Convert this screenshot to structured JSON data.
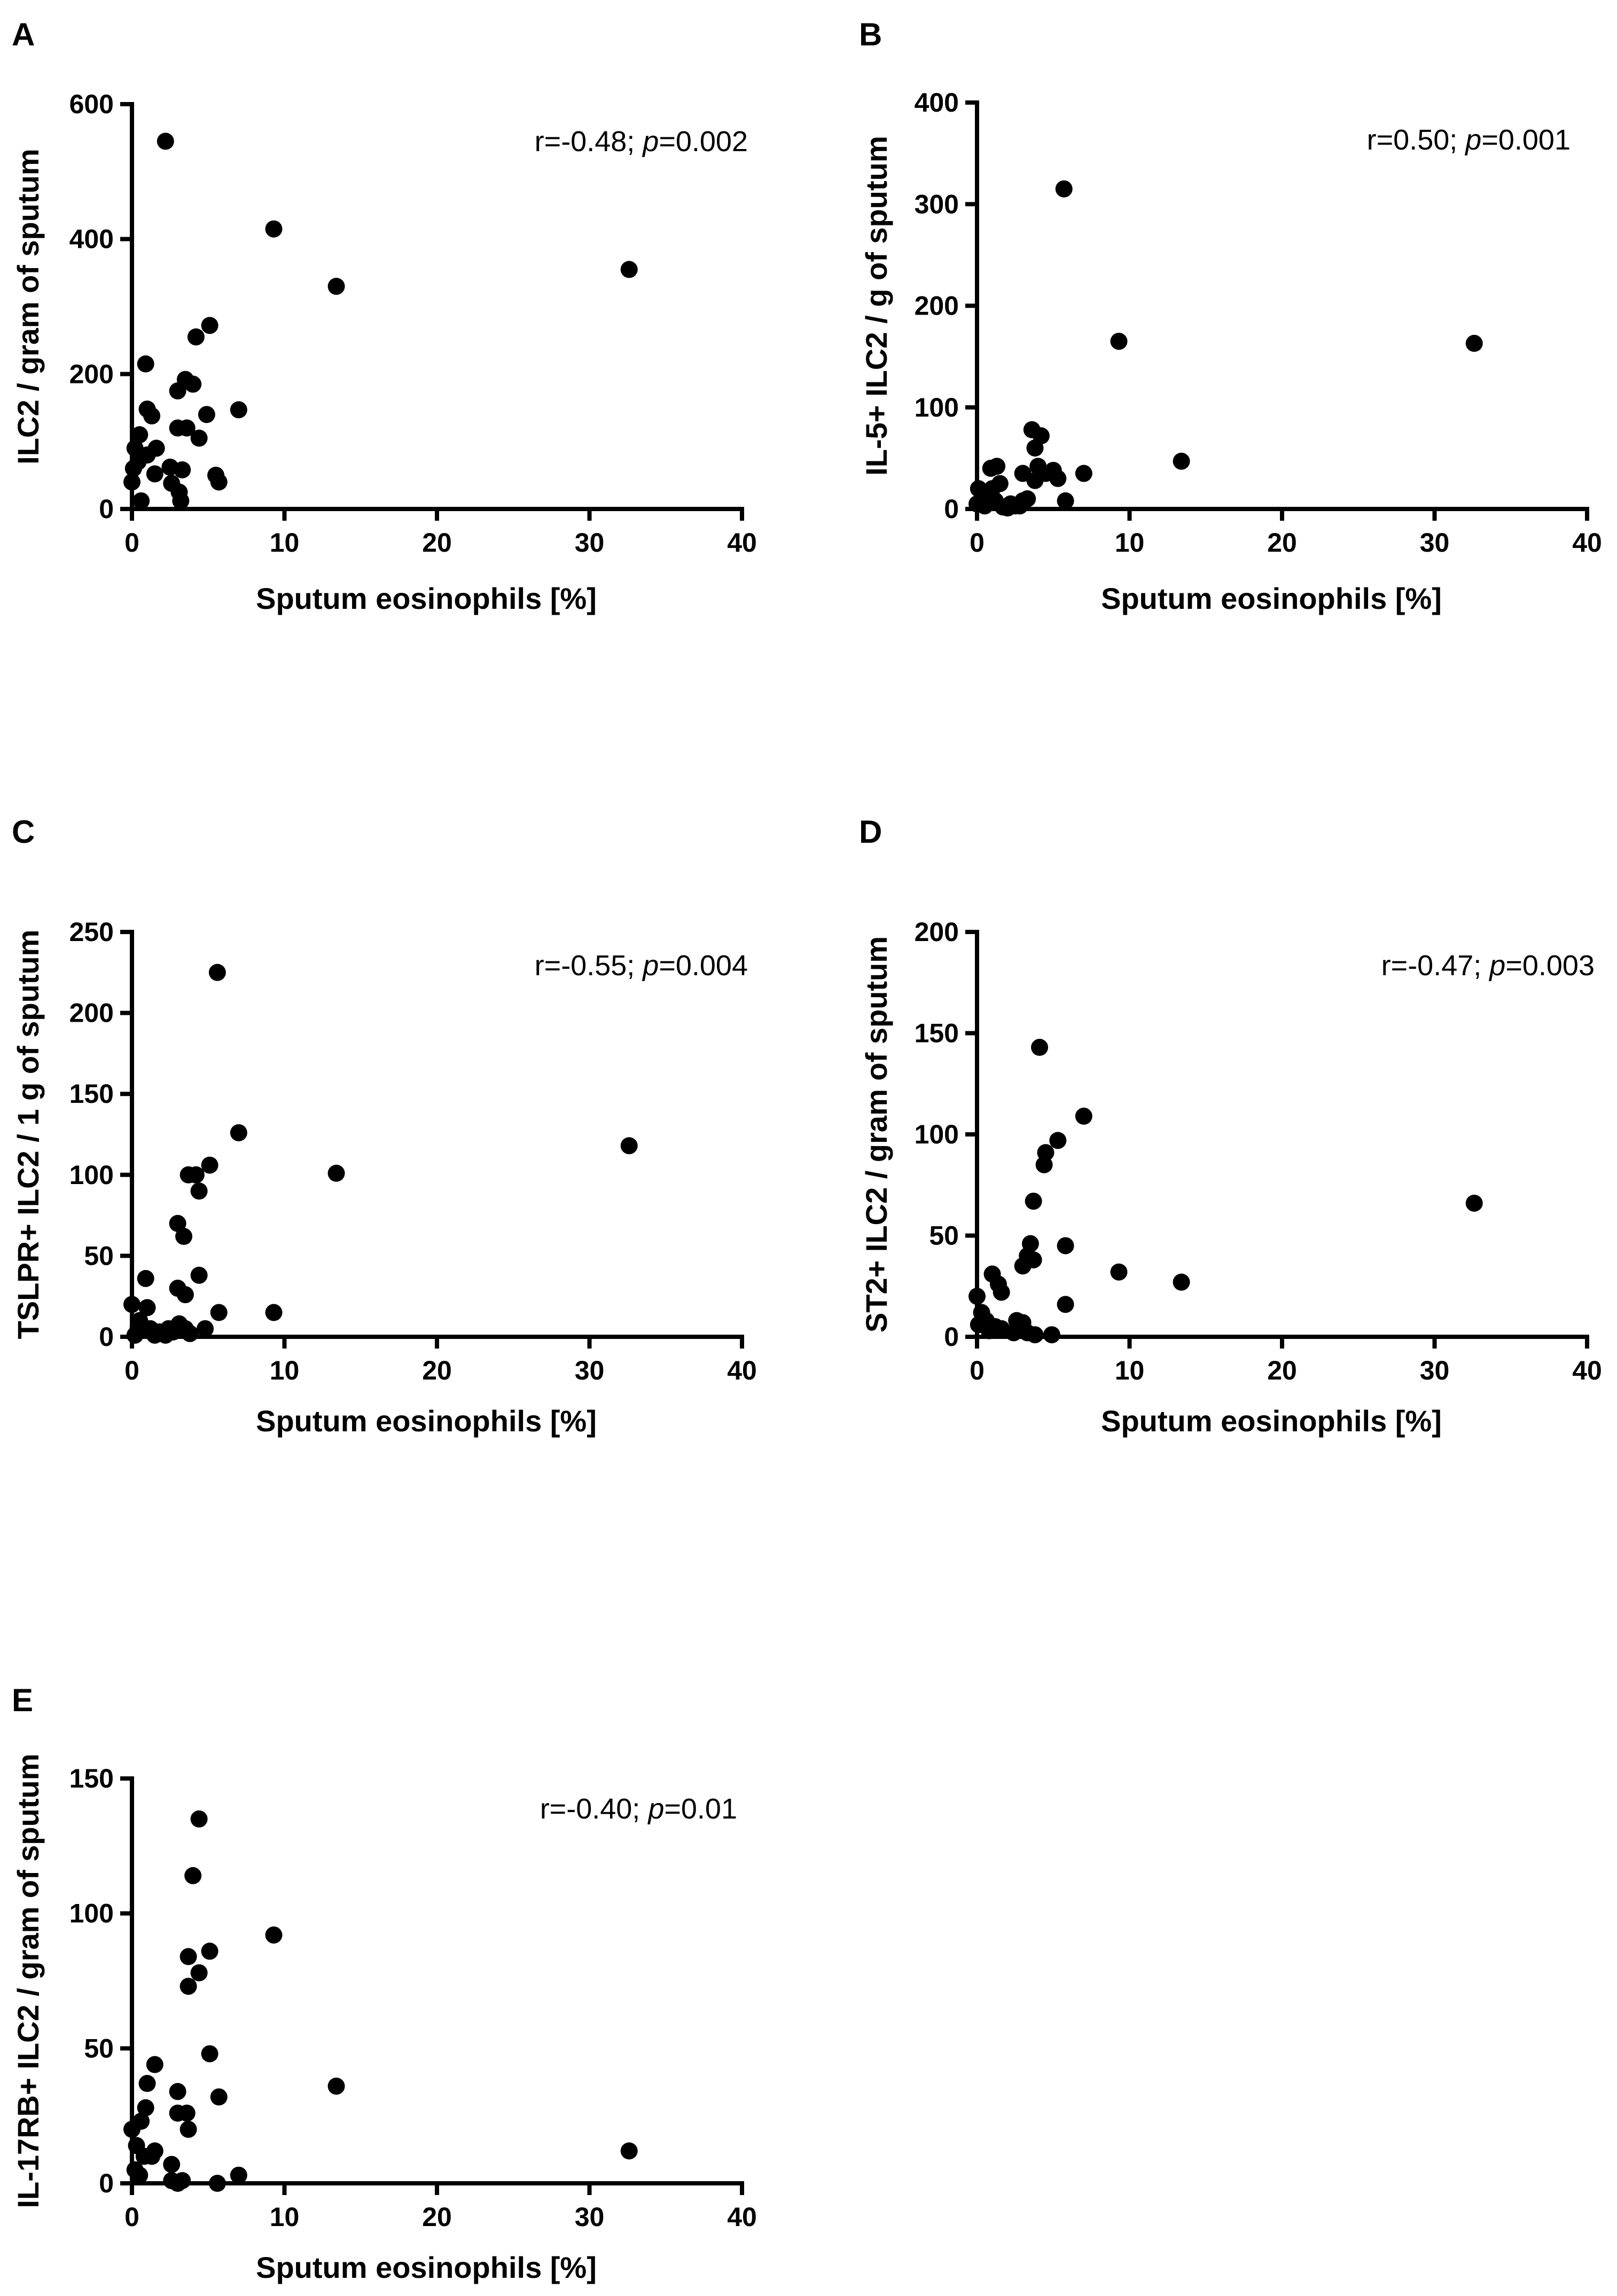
{
  "chart_data": [
    {
      "panel": "A",
      "type": "scatter",
      "xlabel": "Sputum eosinophils [%]",
      "ylabel": "ILC2 / gram of sputum",
      "xticks": [
        0,
        10,
        20,
        30,
        40
      ],
      "yticks": [
        0,
        200,
        400,
        600
      ],
      "xlim": [
        0,
        40
      ],
      "ylim": [
        0,
        600
      ],
      "annotation": {
        "r": "r=-0.48; ",
        "p_label": "p",
        "p_value": "=0.002"
      },
      "points": [
        [
          2.2,
          545
        ],
        [
          9.3,
          415
        ],
        [
          13.4,
          330
        ],
        [
          32.6,
          355
        ],
        [
          5.1,
          272
        ],
        [
          4.2,
          255
        ],
        [
          3.5,
          192
        ],
        [
          4.0,
          185
        ],
        [
          3.0,
          175
        ],
        [
          0.9,
          215
        ],
        [
          1.0,
          148
        ],
        [
          1.3,
          138
        ],
        [
          7.0,
          147
        ],
        [
          4.9,
          140
        ],
        [
          0.2,
          90
        ],
        [
          1.6,
          90
        ],
        [
          0.5,
          110
        ],
        [
          3.0,
          120
        ],
        [
          3.6,
          120
        ],
        [
          4.4,
          105
        ],
        [
          0.4,
          70
        ],
        [
          1.0,
          80
        ],
        [
          0.1,
          60
        ],
        [
          1.5,
          52
        ],
        [
          2.5,
          62
        ],
        [
          3.3,
          58
        ],
        [
          5.5,
          50
        ],
        [
          5.7,
          40
        ],
        [
          0.0,
          40
        ],
        [
          2.6,
          38
        ],
        [
          3.1,
          25
        ],
        [
          0.6,
          12
        ],
        [
          3.2,
          12
        ]
      ]
    },
    {
      "panel": "B",
      "type": "scatter",
      "xlabel": "Sputum eosinophils [%]",
      "ylabel": "IL-5+ ILC2 / g of sputum",
      "xticks": [
        0,
        10,
        20,
        30,
        40
      ],
      "yticks": [
        0,
        100,
        200,
        300,
        400
      ],
      "xlim": [
        0,
        40
      ],
      "ylim": [
        0,
        400
      ],
      "annotation": {
        "r": "r=0.50; ",
        "p_label": "p",
        "p_value": "=0.001"
      },
      "points": [
        [
          5.7,
          315
        ],
        [
          9.3,
          165
        ],
        [
          32.6,
          163
        ],
        [
          3.6,
          78
        ],
        [
          4.2,
          72
        ],
        [
          3.8,
          60
        ],
        [
          13.4,
          47
        ],
        [
          7.0,
          35
        ],
        [
          4.0,
          42
        ],
        [
          5.0,
          38
        ],
        [
          4.5,
          35
        ],
        [
          3.0,
          35
        ],
        [
          5.3,
          30
        ],
        [
          3.8,
          28
        ],
        [
          1.3,
          42
        ],
        [
          0.9,
          40
        ],
        [
          1.5,
          25
        ],
        [
          1.0,
          20
        ],
        [
          0.1,
          20
        ],
        [
          0.4,
          10
        ],
        [
          0.8,
          15
        ],
        [
          1.2,
          8
        ],
        [
          2.2,
          5
        ],
        [
          2.5,
          3
        ],
        [
          3.0,
          8
        ],
        [
          2.8,
          3
        ],
        [
          3.3,
          10
        ],
        [
          5.8,
          8
        ],
        [
          0.0,
          5
        ],
        [
          0.5,
          3
        ],
        [
          1.7,
          2
        ],
        [
          2.0,
          1
        ]
      ]
    },
    {
      "panel": "C",
      "type": "scatter",
      "xlabel": "Sputum eosinophils [%]",
      "ylabel": "TSLPR+ ILC2 / 1 g of sputum",
      "xticks": [
        0,
        10,
        20,
        30,
        40
      ],
      "yticks": [
        0,
        50,
        100,
        150,
        200,
        250
      ],
      "xlim": [
        0,
        40
      ],
      "ylim": [
        0,
        250
      ],
      "annotation": {
        "r": "r=-0.55; ",
        "p_label": "p",
        "p_value": "=0.004"
      },
      "points": [
        [
          5.6,
          225
        ],
        [
          7.0,
          126
        ],
        [
          32.6,
          118
        ],
        [
          5.1,
          106
        ],
        [
          13.4,
          101
        ],
        [
          3.7,
          100
        ],
        [
          4.2,
          100
        ],
        [
          4.4,
          90
        ],
        [
          3.0,
          70
        ],
        [
          3.4,
          62
        ],
        [
          4.4,
          38
        ],
        [
          0.9,
          36
        ],
        [
          3.0,
          30
        ],
        [
          3.5,
          26
        ],
        [
          0.0,
          20
        ],
        [
          1.0,
          18
        ],
        [
          5.7,
          15
        ],
        [
          9.3,
          15
        ],
        [
          0.5,
          10
        ],
        [
          0.4,
          5
        ],
        [
          1.2,
          5
        ],
        [
          1.8,
          3
        ],
        [
          2.4,
          5
        ],
        [
          2.7,
          3
        ],
        [
          3.1,
          8
        ],
        [
          3.5,
          5
        ],
        [
          4.8,
          5
        ],
        [
          0.2,
          1
        ],
        [
          1.5,
          1
        ],
        [
          2.2,
          1
        ],
        [
          3.8,
          2
        ]
      ]
    },
    {
      "panel": "D",
      "type": "scatter",
      "xlabel": "Sputum eosinophils [%]",
      "ylabel": "ST2+ ILC2 / gram of sputum",
      "xticks": [
        0,
        10,
        20,
        30,
        40
      ],
      "yticks": [
        0,
        50,
        100,
        150,
        200
      ],
      "xlim": [
        0,
        40
      ],
      "ylim": [
        0,
        200
      ],
      "annotation": {
        "r": "r=-0.47; ",
        "p_label": "p",
        "p_value": "=0.003"
      },
      "points": [
        [
          4.1,
          143
        ],
        [
          7.0,
          109
        ],
        [
          5.3,
          97
        ],
        [
          4.5,
          91
        ],
        [
          4.4,
          85
        ],
        [
          3.7,
          67
        ],
        [
          32.6,
          66
        ],
        [
          3.5,
          46
        ],
        [
          5.8,
          45
        ],
        [
          3.3,
          40
        ],
        [
          3.7,
          38
        ],
        [
          3.0,
          35
        ],
        [
          9.3,
          32
        ],
        [
          1.0,
          31
        ],
        [
          13.4,
          27
        ],
        [
          1.4,
          26
        ],
        [
          1.6,
          22
        ],
        [
          0.0,
          20
        ],
        [
          5.8,
          16
        ],
        [
          0.3,
          12
        ],
        [
          0.6,
          8
        ],
        [
          0.1,
          6
        ],
        [
          1.2,
          5
        ],
        [
          1.6,
          4
        ],
        [
          2.6,
          8
        ],
        [
          2.7,
          5
        ],
        [
          3.0,
          7
        ],
        [
          2.4,
          2
        ],
        [
          3.3,
          2
        ],
        [
          3.8,
          1
        ],
        [
          4.9,
          1
        ],
        [
          0.8,
          3
        ]
      ]
    },
    {
      "panel": "E",
      "type": "scatter",
      "xlabel": "Sputum eosinophils [%]",
      "ylabel": "IL-17RB+ ILC2 / gram of sputum",
      "xticks": [
        0,
        10,
        20,
        30,
        40
      ],
      "yticks": [
        0,
        50,
        100,
        150
      ],
      "xlim": [
        0,
        40
      ],
      "ylim": [
        0,
        150
      ],
      "annotation": {
        "r": "r=-0.40; ",
        "p_label": "p",
        "p_value": "=0.01"
      },
      "points": [
        [
          4.4,
          135
        ],
        [
          4.0,
          114
        ],
        [
          9.3,
          92
        ],
        [
          5.1,
          86
        ],
        [
          3.7,
          84
        ],
        [
          4.4,
          78
        ],
        [
          3.7,
          73
        ],
        [
          5.1,
          48
        ],
        [
          1.5,
          44
        ],
        [
          1.0,
          37
        ],
        [
          13.4,
          36
        ],
        [
          3.0,
          34
        ],
        [
          5.7,
          32
        ],
        [
          0.9,
          28
        ],
        [
          3.0,
          26
        ],
        [
          3.6,
          26
        ],
        [
          0.6,
          23
        ],
        [
          0.0,
          20
        ],
        [
          3.7,
          20
        ],
        [
          0.3,
          14
        ],
        [
          0.8,
          10
        ],
        [
          1.5,
          12
        ],
        [
          1.3,
          10
        ],
        [
          2.6,
          7
        ],
        [
          32.6,
          12
        ],
        [
          0.2,
          5
        ],
        [
          0.5,
          3
        ],
        [
          7.0,
          3
        ],
        [
          2.6,
          1
        ],
        [
          3.0,
          0
        ],
        [
          3.3,
          1
        ],
        [
          5.6,
          0
        ]
      ]
    }
  ]
}
